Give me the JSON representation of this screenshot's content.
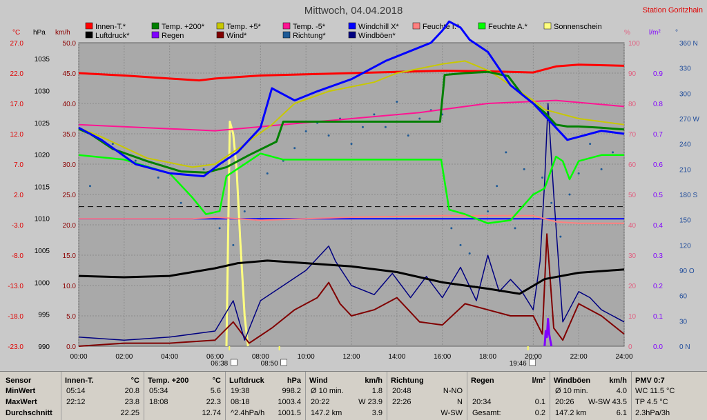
{
  "title": "Mittwoch, 04.04.2018",
  "station": "Station Goritzhain",
  "axis_units": {
    "celsius": "°C",
    "hpa": "hPa",
    "kmh": "km/h",
    "percent": "%",
    "precip": "l/m²",
    "degree": "°"
  },
  "legend": [
    {
      "label": "Innen-T.*",
      "color": "#ff0000"
    },
    {
      "label": "Temp. +200*",
      "color": "#008000"
    },
    {
      "label": "Temp. +5*",
      "color": "#c8c800"
    },
    {
      "label": "Temp. -5*",
      "color": "#ff1493"
    },
    {
      "label": "Windchill X*",
      "color": "#0000ff"
    },
    {
      "label": "Feuchte I.*",
      "color": "#ff8080"
    },
    {
      "label": "Feuchte A.*",
      "color": "#00ff00"
    },
    {
      "label": "Sonnenschein",
      "color": "#ffff80"
    },
    {
      "label": "Luftdruck*",
      "color": "#000000"
    },
    {
      "label": "Regen",
      "color": "#8000ff"
    },
    {
      "label": "Wind*",
      "color": "#800000"
    },
    {
      "label": "Richtung*",
      "color": "#1e5a96"
    },
    {
      "label": "Windböen*",
      "color": "#000080"
    }
  ],
  "sun_markers": [
    {
      "label": "06:38"
    },
    {
      "label": "08:50"
    },
    {
      "label": "19:46"
    }
  ],
  "chart_data": {
    "type": "line",
    "x_range": [
      "00:00",
      "24:00"
    ],
    "x_ticks": [
      "00:00",
      "02:00",
      "04:00",
      "06:00",
      "08:00",
      "10:00",
      "12:00",
      "14:00",
      "16:00",
      "18:00",
      "20:00",
      "22:00",
      "24:00"
    ],
    "axes": {
      "temperature_c": {
        "ticks": [
          "27.0",
          "22.0",
          "17.0",
          "12.0",
          "7.0",
          "2.0",
          "-3.0",
          "-8.0",
          "-13.0",
          "-18.0",
          "-23.0"
        ],
        "range": [
          -23,
          27
        ]
      },
      "pressure_hpa": {
        "ticks": [
          "1035",
          "1030",
          "1025",
          "1020",
          "1015",
          "1010",
          "1005",
          "1000",
          "995",
          "990"
        ],
        "range": [
          990,
          1037.5
        ]
      },
      "wind_kmh": {
        "ticks": [
          "50.0",
          "45.0",
          "40.0",
          "35.0",
          "30.0",
          "25.0",
          "20.0",
          "15.0",
          "10.0",
          "5.0",
          "0.0"
        ],
        "range": [
          0,
          50
        ]
      },
      "humidity_pct": {
        "ticks": [
          "100",
          "90",
          "80",
          "70",
          "60",
          "50",
          "40",
          "30",
          "20",
          "10",
          "0"
        ],
        "range": [
          0,
          100
        ]
      },
      "precip_lm2": {
        "ticks": [
          "0.9",
          "0.8",
          "0.7",
          "0.6",
          "0.5",
          "0.4",
          "0.3",
          "0.2",
          "0.1",
          "0.0"
        ],
        "range": [
          0,
          1.0
        ]
      },
      "direction_deg": {
        "ticks": [
          "360 N",
          "330",
          "300",
          "270 W",
          "240",
          "210",
          "180 S",
          "150",
          "120",
          "90 O",
          "60",
          "30",
          "0 N"
        ],
        "range": [
          0,
          360
        ]
      }
    },
    "series": [
      {
        "name": "Innen-T.*",
        "axis": "temperature_c",
        "x": [
          0,
          2,
          4,
          5.3,
          6,
          8,
          10,
          12,
          14,
          16,
          18,
          20,
          21,
          22,
          24
        ],
        "y": [
          22.0,
          21.6,
          21.1,
          20.8,
          21.1,
          21.6,
          21.8,
          22.0,
          22.2,
          22.4,
          22.3,
          22.1,
          23.1,
          23.4,
          23.2
        ]
      },
      {
        "name": "Temp. +200*",
        "axis": "temperature_c",
        "x": [
          0,
          0.5,
          1.5,
          3,
          4.5,
          5.6,
          6.5,
          7.5,
          8.7,
          9,
          12,
          15.9,
          16.1,
          17,
          18,
          18.9,
          19.5,
          20.5,
          21,
          21.5,
          22,
          23,
          24
        ],
        "y": [
          12.8,
          12.0,
          9.5,
          7.5,
          5.8,
          5.6,
          6.5,
          8.5,
          10.7,
          14.0,
          14.0,
          14.0,
          21.7,
          22.0,
          22.2,
          21.5,
          18.5,
          15.5,
          13.5,
          13.2,
          13.2,
          13.0,
          12.7
        ]
      },
      {
        "name": "Temp. +5*",
        "axis": "temperature_c",
        "x": [
          0,
          1,
          3,
          5,
          6,
          7,
          8.5,
          9.5,
          11,
          13,
          14,
          16,
          17,
          18.1,
          19,
          20,
          20.5,
          21,
          22,
          24
        ],
        "y": [
          13.0,
          11.5,
          8.0,
          6.5,
          7.0,
          9.5,
          13.5,
          17.0,
          19.0,
          20.5,
          22.0,
          23.5,
          24.0,
          22.3,
          20.0,
          17.5,
          16.0,
          15.5,
          14.5,
          13.5
        ]
      },
      {
        "name": "Temp. -5*",
        "axis": "temperature_c",
        "x": [
          0,
          3,
          6,
          9,
          12,
          15,
          18,
          21,
          24
        ],
        "y": [
          13.5,
          13.0,
          12.5,
          13.5,
          14.5,
          15.5,
          17.0,
          17.5,
          16.5
        ]
      },
      {
        "name": "Windchill X*",
        "axis": "temperature_c",
        "x": [
          0,
          1,
          2.5,
          4,
          5.5,
          6.2,
          7,
          8,
          8.5,
          9.5,
          10.5,
          12,
          13.5,
          14.5,
          15.5,
          16,
          16.3,
          16.8,
          17.2,
          18,
          19,
          20,
          21,
          21.5,
          22,
          23,
          24
        ],
        "y": [
          13.0,
          11.0,
          7.0,
          5.5,
          5.0,
          7.0,
          9.0,
          13.0,
          19.5,
          17.5,
          19.0,
          21.0,
          24.0,
          25.5,
          27.0,
          29.0,
          30.5,
          29.5,
          27.5,
          25.5,
          20.0,
          17.0,
          13.0,
          11.0,
          11.5,
          12.5,
          12.0
        ]
      },
      {
        "name": "Feuchte I.*",
        "axis": "humidity_pct",
        "x": [
          0,
          5,
          6,
          8,
          12,
          16,
          20,
          21,
          22,
          24
        ],
        "y": [
          42.0,
          42.0,
          42.5,
          41.5,
          42.5,
          43.0,
          43.0,
          41.0,
          40.5,
          40.5
        ]
      },
      {
        "name": "Feuchte A.*",
        "axis": "humidity_pct",
        "x": [
          0,
          2,
          4,
          5,
          5.6,
          6.2,
          6.5,
          8,
          9,
          12,
          15,
          15.95,
          16.3,
          17,
          18,
          19,
          20,
          20.5,
          21,
          21.3,
          21.6,
          22,
          23,
          24
        ],
        "y": [
          63.0,
          61.5,
          57.0,
          49.0,
          43.5,
          44.5,
          56.0,
          63.5,
          61.5,
          61.5,
          61.5,
          61.5,
          45.0,
          43.5,
          40.5,
          41.5,
          50.0,
          52.0,
          62.5,
          61.0,
          55.0,
          61.0,
          63.0,
          63.0
        ]
      },
      {
        "name": "Sonnenschein",
        "axis": "wind_kmh",
        "x": [
          6.5,
          6.65,
          6.8,
          6.95,
          7.1,
          7.3,
          7.45
        ],
        "y": [
          0,
          37.0,
          35.0,
          29.0,
          18.0,
          5.0,
          0
        ]
      },
      {
        "name": "Luftdruck*",
        "axis": "pressure_hpa",
        "x": [
          0,
          2,
          4,
          6,
          7,
          8.3,
          10,
          12,
          14,
          16,
          18,
          19.4,
          20.5,
          22,
          24
        ],
        "y": [
          1001.0,
          1000.8,
          1001.0,
          1002.2,
          1003.0,
          1003.4,
          1003.0,
          1002.5,
          1001.6,
          1000.0,
          999.0,
          998.2,
          1000.5,
          1001.5,
          1002.0
        ]
      },
      {
        "name": "Regen",
        "axis": "precip_lm2",
        "x": [
          20.5,
          20.55,
          20.6,
          20.65,
          20.7,
          20.75,
          20.8
        ],
        "y": [
          0,
          0.05,
          0.03,
          0.09,
          0.04,
          0.02,
          0
        ]
      },
      {
        "name": "Wind*",
        "axis": "wind_kmh",
        "x": [
          0,
          2,
          4,
          6,
          6.8,
          7.5,
          8.5,
          9.5,
          10.5,
          11,
          11.5,
          12,
          13,
          14,
          15,
          16,
          17,
          18,
          19,
          20,
          20.4,
          20.6,
          20.9,
          21.3,
          22,
          23,
          24
        ],
        "y": [
          0,
          0.5,
          0.5,
          1.0,
          4.0,
          0.5,
          3.0,
          6.0,
          8.0,
          10.5,
          7.0,
          5.0,
          6.0,
          8.0,
          4.0,
          3.5,
          7.0,
          6.0,
          5.0,
          5.0,
          2.0,
          18.5,
          3.0,
          1.0,
          7.0,
          5.0,
          2.0
        ]
      },
      {
        "name": "Windböen*",
        "axis": "wind_kmh",
        "x": [
          0,
          2,
          4,
          6,
          6.8,
          7.3,
          8,
          9,
          10,
          11,
          11.3,
          12,
          13,
          13.8,
          14.6,
          15.3,
          16,
          16.8,
          17.5,
          18,
          18.5,
          19,
          19.5,
          20,
          20.3,
          20.5,
          20.65,
          20.9,
          21.3,
          22,
          22.5,
          23,
          24
        ],
        "y": [
          1.5,
          1.0,
          1.5,
          2.5,
          7.5,
          1.0,
          7.5,
          10.0,
          12.5,
          16.5,
          14.0,
          10.0,
          8.5,
          12.0,
          8.0,
          11.5,
          8.0,
          13.0,
          7.5,
          15.0,
          9.0,
          11.0,
          9.0,
          6.0,
          14.0,
          27.0,
          40.0,
          25.0,
          4.0,
          9.0,
          8.0,
          6.0,
          4.0
        ]
      },
      {
        "name": "Richtung*",
        "axis": "direction_deg",
        "type": "scatter",
        "x": [
          0.5,
          1.5,
          2.5,
          3.5,
          4.5,
          5.5,
          6.2,
          6.8,
          7.3,
          7.8,
          8.3,
          9,
          9.5,
          10,
          10.5,
          11,
          11.5,
          12,
          12.5,
          13,
          13.5,
          14,
          14.5,
          15,
          15.5,
          16,
          16.4,
          16.8,
          17.2,
          17.6,
          18,
          18.4,
          18.8,
          19.2,
          19.6,
          20,
          20.4,
          20.8,
          21.2,
          21.6,
          22,
          22.5,
          23,
          23.5
        ],
        "y": [
          190,
          240,
          220,
          200,
          170,
          210,
          140,
          120,
          160,
          150,
          205,
          220,
          235,
          255,
          265,
          250,
          270,
          240,
          260,
          275,
          260,
          290,
          250,
          270,
          280,
          275,
          140,
          120,
          110,
          150,
          160,
          190,
          230,
          140,
          210,
          180,
          200,
          170,
          130,
          180,
          205,
          240,
          210,
          230
        ]
      }
    ]
  },
  "stats_table": {
    "columns": [
      {
        "header": "Sensor",
        "unit": "",
        "rows": [
          "MinWert",
          "MaxWert",
          "Durchschnitt"
        ]
      },
      {
        "header": "Innen-T.",
        "unit": "°C",
        "rows": [
          [
            "05:14",
            "20.8"
          ],
          [
            "22:12",
            "23.8"
          ],
          [
            "",
            "22.25"
          ]
        ]
      },
      {
        "header": "Temp. +200",
        "unit": "°C",
        "rows": [
          [
            "05:34",
            "5.6"
          ],
          [
            "18:08",
            "22.3"
          ],
          [
            "",
            "12.74"
          ]
        ]
      },
      {
        "header": "Luftdruck",
        "unit": "hPa",
        "rows": [
          [
            "19:38",
            "998.2"
          ],
          [
            "08:18",
            "1003.4"
          ],
          [
            "^2.4hPa/h",
            "1001.5"
          ]
        ]
      },
      {
        "header": "Wind",
        "unit": "km/h",
        "rows": [
          [
            "Ø 10 min.",
            "1.8"
          ],
          [
            "20:22",
            "W 23.9"
          ],
          [
            "147.2 km",
            "3.9"
          ]
        ]
      },
      {
        "header": "Richtung",
        "unit": "",
        "rows": [
          [
            "20:48",
            "N-NO"
          ],
          [
            "22:26",
            "N"
          ],
          [
            "",
            "W-SW"
          ]
        ]
      },
      {
        "header": "Regen",
        "unit": "l/m²",
        "rows": [
          [
            "",
            ""
          ],
          [
            "20:34",
            "0.1"
          ],
          [
            "Gesamt:",
            "0.2"
          ]
        ]
      },
      {
        "header": "Windböen",
        "unit": "km/h",
        "rows": [
          [
            "Ø 10 min.",
            "4.0"
          ],
          [
            "20:26",
            "W-SW 43.5"
          ],
          [
            "147.2 km",
            "6.1"
          ]
        ]
      },
      {
        "header": "PMV 0:7",
        "unit": "",
        "rows": [
          [
            "WC 11.5 °C"
          ],
          [
            "TP 4.5 °C"
          ],
          [
            "2.3hPa/3h"
          ]
        ]
      }
    ]
  }
}
